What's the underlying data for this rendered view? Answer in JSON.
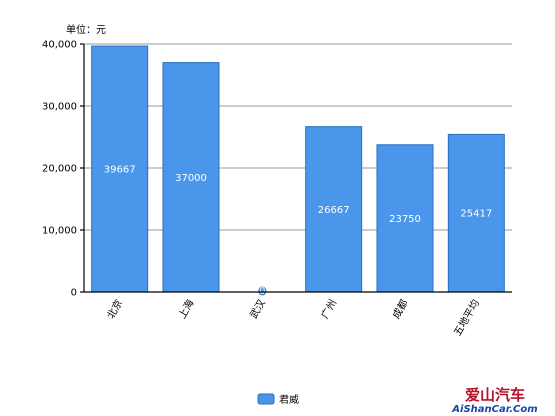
{
  "chart_data": {
    "type": "bar",
    "unit_label": "单位：元",
    "categories": [
      "北京",
      "上海",
      "武汉",
      "广州",
      "成都",
      "五地平均"
    ],
    "series": [
      {
        "name": "君威",
        "values": [
          39667,
          37000,
          0,
          26667,
          23750,
          25417
        ],
        "color": "#4a96ea"
      }
    ],
    "data_labels": [
      "39667",
      "37000",
      "0",
      "26667",
      "23750",
      "25417"
    ],
    "y_ticks": [
      0,
      10000,
      20000,
      30000,
      40000
    ],
    "y_tick_labels": [
      "0",
      "10,000",
      "20,000",
      "30,000",
      "40,000"
    ],
    "ylim": [
      0,
      40000
    ],
    "grid": true,
    "legend_position": "bottom-center"
  },
  "watermark": {
    "title": "爱山汽车",
    "url": "AiShanCar.Com"
  }
}
